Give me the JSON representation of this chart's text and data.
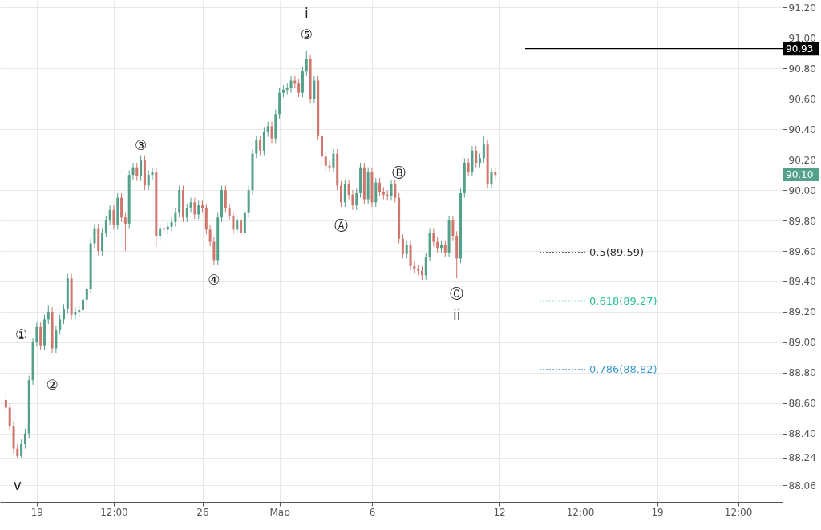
{
  "chart_data": {
    "type": "candlestick",
    "categories": [
      null,
      null,
      null,
      null,
      null,
      null,
      null,
      null,
      "19",
      null,
      null,
      null,
      null,
      null,
      null,
      null,
      null,
      null,
      null,
      null,
      null,
      null,
      null,
      null,
      null,
      null,
      null,
      null,
      "12:00",
      null,
      null,
      null,
      null,
      null,
      null,
      null,
      null,
      null,
      null,
      null,
      null,
      null,
      null,
      null,
      null,
      null,
      null,
      null,
      null,
      null,
      null,
      "26",
      null,
      null,
      null,
      null,
      null,
      null,
      null,
      null,
      null,
      null,
      null,
      null,
      null,
      null,
      null,
      null,
      null,
      null,
      null,
      "Мар",
      null,
      null,
      null,
      null,
      null,
      null,
      null,
      null,
      null,
      null,
      null,
      null,
      null,
      null,
      null,
      null,
      null,
      null,
      null,
      null,
      null,
      null,
      null,
      "6",
      null,
      null,
      null,
      null,
      null,
      null,
      null,
      null,
      null,
      null,
      null,
      null,
      null,
      null,
      null,
      null,
      null,
      null,
      null,
      null,
      null,
      null,
      null,
      null,
      null,
      null,
      null,
      null,
      null,
      null,
      null,
      null,
      "12",
      null,
      null,
      null,
      null,
      null,
      null,
      null,
      null,
      null,
      null,
      null,
      null,
      null,
      null,
      null,
      null,
      null,
      null,
      null,
      null,
      "12:00",
      null,
      null,
      null,
      null,
      null,
      null,
      null,
      null,
      null,
      null,
      null,
      null,
      null,
      null,
      null,
      null,
      null,
      null,
      null,
      "19",
      null,
      null,
      null,
      null,
      null,
      null,
      null,
      null,
      null,
      null,
      null,
      null,
      null,
      null,
      null,
      null,
      null,
      null,
      null,
      null,
      "12:00",
      null,
      null,
      null,
      null,
      null,
      null,
      null,
      null,
      null,
      null
    ],
    "ohlc": [
      [
        88.62,
        88.65,
        88.54,
        88.57
      ],
      [
        88.57,
        88.6,
        88.42,
        88.45
      ],
      [
        88.45,
        88.48,
        88.27,
        88.3
      ],
      [
        88.3,
        88.33,
        88.24,
        88.25
      ],
      [
        88.25,
        88.36,
        88.24,
        88.33
      ],
      [
        88.33,
        88.43,
        88.3,
        88.4
      ],
      [
        88.4,
        88.78,
        88.37,
        88.75
      ],
      [
        88.75,
        89.03,
        88.72,
        89.0
      ],
      [
        89.0,
        89.13,
        88.97,
        89.1
      ],
      [
        89.1,
        89.13,
        88.95,
        88.98
      ],
      [
        88.98,
        89.18,
        88.95,
        89.15
      ],
      [
        89.15,
        89.24,
        89.12,
        89.2
      ],
      [
        89.2,
        89.23,
        88.93,
        88.96
      ],
      [
        88.96,
        89.11,
        88.93,
        89.08
      ],
      [
        89.08,
        89.18,
        89.05,
        89.15
      ],
      [
        89.15,
        89.25,
        89.12,
        89.22
      ],
      [
        89.22,
        89.45,
        89.19,
        89.42
      ],
      [
        89.42,
        89.45,
        89.15,
        89.18
      ],
      [
        89.18,
        89.23,
        89.15,
        89.2
      ],
      [
        89.2,
        89.24,
        89.17,
        89.21
      ],
      [
        89.21,
        89.31,
        89.18,
        89.28
      ],
      [
        89.28,
        89.38,
        89.25,
        89.35
      ],
      [
        89.35,
        89.68,
        89.32,
        89.65
      ],
      [
        89.65,
        89.78,
        89.62,
        89.75
      ],
      [
        89.75,
        89.78,
        89.57,
        89.6
      ],
      [
        89.6,
        89.75,
        89.57,
        89.72
      ],
      [
        89.72,
        89.83,
        89.69,
        89.8
      ],
      [
        89.8,
        89.9,
        89.77,
        89.87
      ],
      [
        89.87,
        89.9,
        89.74,
        89.77
      ],
      [
        89.77,
        89.98,
        89.74,
        89.95
      ],
      [
        89.95,
        89.98,
        89.79,
        89.82
      ],
      [
        89.82,
        89.85,
        89.6,
        89.78
      ],
      [
        89.78,
        90.13,
        89.75,
        90.1
      ],
      [
        90.1,
        90.18,
        90.07,
        90.15
      ],
      [
        90.15,
        90.18,
        90.06,
        90.09
      ],
      [
        90.09,
        90.23,
        90.06,
        90.2
      ],
      [
        90.2,
        90.23,
        90.0,
        90.03
      ],
      [
        90.03,
        90.13,
        90.0,
        90.1
      ],
      [
        90.1,
        90.15,
        90.07,
        90.12
      ],
      [
        90.12,
        90.15,
        89.63,
        89.7
      ],
      [
        89.7,
        89.78,
        89.67,
        89.75
      ],
      [
        89.75,
        89.78,
        89.71,
        89.74
      ],
      [
        89.74,
        89.79,
        89.71,
        89.76
      ],
      [
        89.76,
        89.82,
        89.73,
        89.79
      ],
      [
        89.79,
        89.88,
        89.76,
        89.85
      ],
      [
        89.85,
        90.03,
        89.82,
        90.0
      ],
      [
        90.0,
        90.03,
        89.79,
        89.82
      ],
      [
        89.82,
        89.91,
        89.79,
        89.88
      ],
      [
        89.88,
        89.95,
        89.85,
        89.92
      ],
      [
        89.92,
        89.95,
        89.81,
        89.84
      ],
      [
        89.84,
        89.93,
        89.81,
        89.9
      ],
      [
        89.9,
        89.93,
        89.85,
        89.88
      ],
      [
        89.88,
        89.91,
        89.71,
        89.74
      ],
      [
        89.74,
        89.77,
        89.63,
        89.66
      ],
      [
        89.66,
        89.69,
        89.51,
        89.54
      ],
      [
        89.54,
        89.85,
        89.51,
        89.82
      ],
      [
        89.82,
        90.03,
        89.79,
        90.0
      ],
      [
        90.0,
        90.03,
        89.85,
        89.88
      ],
      [
        89.88,
        89.91,
        89.8,
        89.83
      ],
      [
        89.83,
        89.86,
        89.71,
        89.74
      ],
      [
        89.74,
        89.83,
        89.71,
        89.8
      ],
      [
        89.8,
        89.83,
        89.69,
        89.72
      ],
      [
        89.72,
        89.88,
        89.69,
        89.85
      ],
      [
        89.85,
        90.03,
        89.82,
        90.0
      ],
      [
        90.0,
        90.27,
        89.97,
        90.24
      ],
      [
        90.24,
        90.36,
        90.21,
        90.33
      ],
      [
        90.33,
        90.36,
        90.23,
        90.26
      ],
      [
        90.26,
        90.41,
        90.23,
        90.38
      ],
      [
        90.38,
        90.45,
        90.35,
        90.42
      ],
      [
        90.42,
        90.45,
        90.31,
        90.34
      ],
      [
        90.34,
        90.53,
        90.31,
        90.5
      ],
      [
        90.5,
        90.67,
        90.47,
        90.64
      ],
      [
        90.64,
        90.69,
        90.61,
        90.66
      ],
      [
        90.66,
        90.7,
        90.63,
        90.67
      ],
      [
        90.67,
        90.75,
        90.64,
        90.72
      ],
      [
        90.72,
        90.75,
        90.67,
        90.7
      ],
      [
        90.7,
        90.73,
        90.61,
        90.64
      ],
      [
        90.64,
        90.81,
        90.61,
        90.78
      ],
      [
        90.78,
        90.92,
        90.75,
        90.86
      ],
      [
        90.86,
        90.89,
        90.57,
        90.6
      ],
      [
        90.6,
        90.75,
        90.57,
        90.72
      ],
      [
        90.72,
        90.75,
        90.33,
        90.36
      ],
      [
        90.36,
        90.39,
        90.19,
        90.22
      ],
      [
        90.22,
        90.25,
        90.13,
        90.16
      ],
      [
        90.16,
        90.19,
        90.12,
        90.15
      ],
      [
        90.15,
        90.27,
        90.12,
        90.24
      ],
      [
        90.24,
        90.27,
        90.0,
        90.03
      ],
      [
        90.03,
        90.06,
        89.89,
        89.92
      ],
      [
        89.92,
        90.07,
        89.89,
        90.04
      ],
      [
        90.04,
        90.07,
        89.94,
        89.97
      ],
      [
        89.97,
        90.0,
        89.87,
        89.9
      ],
      [
        89.9,
        90.01,
        89.87,
        89.98
      ],
      [
        89.98,
        90.18,
        89.95,
        90.15
      ],
      [
        90.15,
        90.18,
        89.91,
        89.94
      ],
      [
        89.94,
        90.15,
        89.91,
        90.12
      ],
      [
        90.12,
        90.15,
        89.89,
        89.92
      ],
      [
        89.92,
        90.08,
        89.89,
        90.05
      ],
      [
        90.05,
        90.08,
        89.96,
        89.99
      ],
      [
        89.99,
        90.02,
        89.94,
        89.97
      ],
      [
        89.97,
        90.0,
        89.93,
        89.96
      ],
      [
        89.96,
        90.07,
        89.93,
        90.04
      ],
      [
        90.04,
        90.07,
        89.92,
        89.95
      ],
      [
        89.95,
        89.98,
        89.65,
        89.68
      ],
      [
        89.68,
        89.71,
        89.55,
        89.58
      ],
      [
        89.58,
        89.67,
        89.55,
        89.64
      ],
      [
        89.64,
        89.67,
        89.47,
        89.5
      ],
      [
        89.5,
        89.53,
        89.45,
        89.48
      ],
      [
        89.48,
        89.51,
        89.44,
        89.47
      ],
      [
        89.47,
        89.5,
        89.41,
        89.44
      ],
      [
        89.44,
        89.59,
        89.41,
        89.56
      ],
      [
        89.56,
        89.75,
        89.53,
        89.72
      ],
      [
        89.72,
        89.75,
        89.63,
        89.66
      ],
      [
        89.66,
        89.69,
        89.59,
        89.62
      ],
      [
        89.62,
        89.67,
        89.59,
        89.64
      ],
      [
        89.64,
        89.67,
        89.56,
        89.59
      ],
      [
        89.59,
        89.83,
        89.56,
        89.8
      ],
      [
        89.8,
        89.83,
        89.67,
        89.7
      ],
      [
        89.7,
        89.73,
        89.42,
        89.55
      ],
      [
        89.55,
        90.01,
        89.52,
        89.98
      ],
      [
        89.98,
        90.21,
        89.95,
        90.18
      ],
      [
        90.18,
        90.21,
        90.09,
        90.12
      ],
      [
        90.12,
        90.29,
        90.09,
        90.26
      ],
      [
        90.26,
        90.29,
        90.15,
        90.18
      ],
      [
        90.18,
        90.24,
        90.15,
        90.21
      ],
      [
        90.21,
        90.36,
        90.18,
        90.3
      ],
      [
        90.3,
        90.33,
        90.01,
        90.04
      ],
      [
        90.04,
        90.15,
        90.01,
        90.12
      ],
      [
        90.12,
        90.15,
        90.07,
        90.1
      ],
      null,
      null,
      null,
      null,
      null,
      null,
      null,
      null,
      null,
      null,
      null,
      null,
      null,
      null,
      null,
      null,
      null,
      null,
      null,
      null,
      null,
      null,
      null,
      null,
      null,
      null,
      null,
      null,
      null,
      null,
      null,
      null,
      null,
      null,
      null,
      null,
      null,
      null,
      null,
      null,
      null,
      null,
      null,
      null,
      null,
      null,
      null,
      null,
      null,
      null,
      null,
      null,
      null,
      null,
      null,
      null,
      null,
      null,
      null,
      null,
      null,
      null,
      null,
      null,
      null,
      null,
      null,
      null,
      null,
      null,
      null,
      null,
      null
    ],
    "colors": [
      "#d0766c",
      "#d0766c",
      "#d0766c",
      "#d0766c",
      "#53a18b",
      "#53a18b",
      "#53a18b",
      "#53a18b",
      "#53a18b",
      "#d0766c",
      "#53a18b",
      "#53a18b",
      "#d0766c",
      "#53a18b",
      "#53a18b",
      "#53a18b",
      "#53a18b",
      "#d0766c",
      "#53a18b",
      "#53a18b",
      "#53a18b",
      "#53a18b",
      "#53a18b",
      "#53a18b",
      "#d0766c",
      "#53a18b",
      "#53a18b",
      "#53a18b",
      "#d0766c",
      "#53a18b",
      "#d0766c",
      "#d0766c",
      "#53a18b",
      "#53a18b",
      "#d0766c",
      "#53a18b",
      "#d0766c",
      "#53a18b",
      "#53a18b",
      "#d0766c",
      "#53a18b",
      "#d0766c",
      "#53a18b",
      "#53a18b",
      "#53a18b",
      "#53a18b",
      "#d0766c",
      "#53a18b",
      "#53a18b",
      "#d0766c",
      "#53a18b",
      "#d0766c",
      "#d0766c",
      "#d0766c",
      "#d0766c",
      "#53a18b",
      "#53a18b",
      "#d0766c",
      "#d0766c",
      "#d0766c",
      "#53a18b",
      "#d0766c",
      "#53a18b",
      "#53a18b",
      "#53a18b",
      "#53a18b",
      "#d0766c",
      "#53a18b",
      "#53a18b",
      "#d0766c",
      "#53a18b",
      "#53a18b",
      "#53a18b",
      "#53a18b",
      "#53a18b",
      "#d0766c",
      "#d0766c",
      "#53a18b",
      "#53a18b",
      "#d0766c",
      "#53a18b",
      "#d0766c",
      "#d0766c",
      "#d0766c",
      "#d0766c",
      "#53a18b",
      "#d0766c",
      "#d0766c",
      "#53a18b",
      "#d0766c",
      "#d0766c",
      "#53a18b",
      "#53a18b",
      "#d0766c",
      "#53a18b",
      "#d0766c",
      "#53a18b",
      "#d0766c",
      "#d0766c",
      "#d0766c",
      "#53a18b",
      "#d0766c",
      "#d0766c",
      "#d0766c",
      "#53a18b",
      "#d0766c",
      "#d0766c",
      "#d0766c",
      "#d0766c",
      "#53a18b",
      "#53a18b",
      "#d0766c",
      "#d0766c",
      "#53a18b",
      "#d0766c",
      "#53a18b",
      "#d0766c",
      "#d0766c",
      "#53a18b",
      "#53a18b",
      "#d0766c",
      "#53a18b",
      "#d0766c",
      "#53a18b",
      "#53a18b",
      "#d0766c",
      "#53a18b",
      "#d0766c",
      null,
      null,
      null,
      null,
      null,
      null,
      null,
      null,
      null,
      null,
      null,
      null,
      null,
      null,
      null,
      null,
      null,
      null,
      null,
      null,
      null,
      null,
      null,
      null,
      null,
      null,
      null,
      null,
      null,
      null,
      null,
      null,
      null,
      null,
      null,
      null,
      null,
      null,
      null,
      null,
      null,
      null,
      null,
      null,
      null,
      null,
      null,
      null,
      null,
      null,
      null,
      null,
      null,
      null,
      null,
      null,
      null,
      null,
      null,
      null,
      null,
      null,
      null,
      null,
      null,
      null,
      null,
      null,
      null,
      null,
      null,
      null,
      null
    ],
    "ylim": [
      87.95,
      91.25
    ],
    "yticks": [
      {
        "value": 88.06,
        "label": "88.06"
      },
      {
        "value": 88.24,
        "label": "88.24"
      },
      {
        "value": 88.4,
        "label": "88.40"
      },
      {
        "value": 88.6,
        "label": "88.60"
      },
      {
        "value": 88.8,
        "label": "88.80"
      },
      {
        "value": 89.0,
        "label": "89.00"
      },
      {
        "value": 89.2,
        "label": "89.20"
      },
      {
        "value": 89.4,
        "label": "89.40"
      },
      {
        "value": 89.6,
        "label": "89.60"
      },
      {
        "value": 89.8,
        "label": "89.80"
      },
      {
        "value": 90.0,
        "label": "90.00"
      },
      {
        "value": 90.2,
        "label": "90.20"
      },
      {
        "value": 90.4,
        "label": "90.40"
      },
      {
        "value": 90.6,
        "label": "90.60"
      },
      {
        "value": 90.8,
        "label": "90.80"
      },
      {
        "value": 91.0,
        "label": "91.00"
      },
      {
        "value": 91.2,
        "label": "91.20"
      }
    ],
    "grid": true,
    "ref_lines": [
      {
        "axis": "y",
        "value": 90.93,
        "label": "90.93",
        "color": "#000000",
        "line_style": "solid"
      },
      {
        "axis": "y",
        "value": 89.59,
        "label": "0.5(89.59)",
        "color": "#333333",
        "line_style": "dotted"
      },
      {
        "axis": "y",
        "value": 89.27,
        "label": "0.618(89.27)",
        "color": "#2bbf97",
        "line_style": "dotted"
      },
      {
        "axis": "y",
        "value": 88.82,
        "label": "0.786(88.82)",
        "color": "#3a9bd0",
        "line_style": "dotted"
      }
    ],
    "annotations": [
      "i",
      "⑤",
      "③",
      "④",
      "①",
      "②",
      "v",
      "Ⓐ",
      "Ⓑ",
      "Ⓒ",
      "ii",
      "90.10"
    ]
  }
}
